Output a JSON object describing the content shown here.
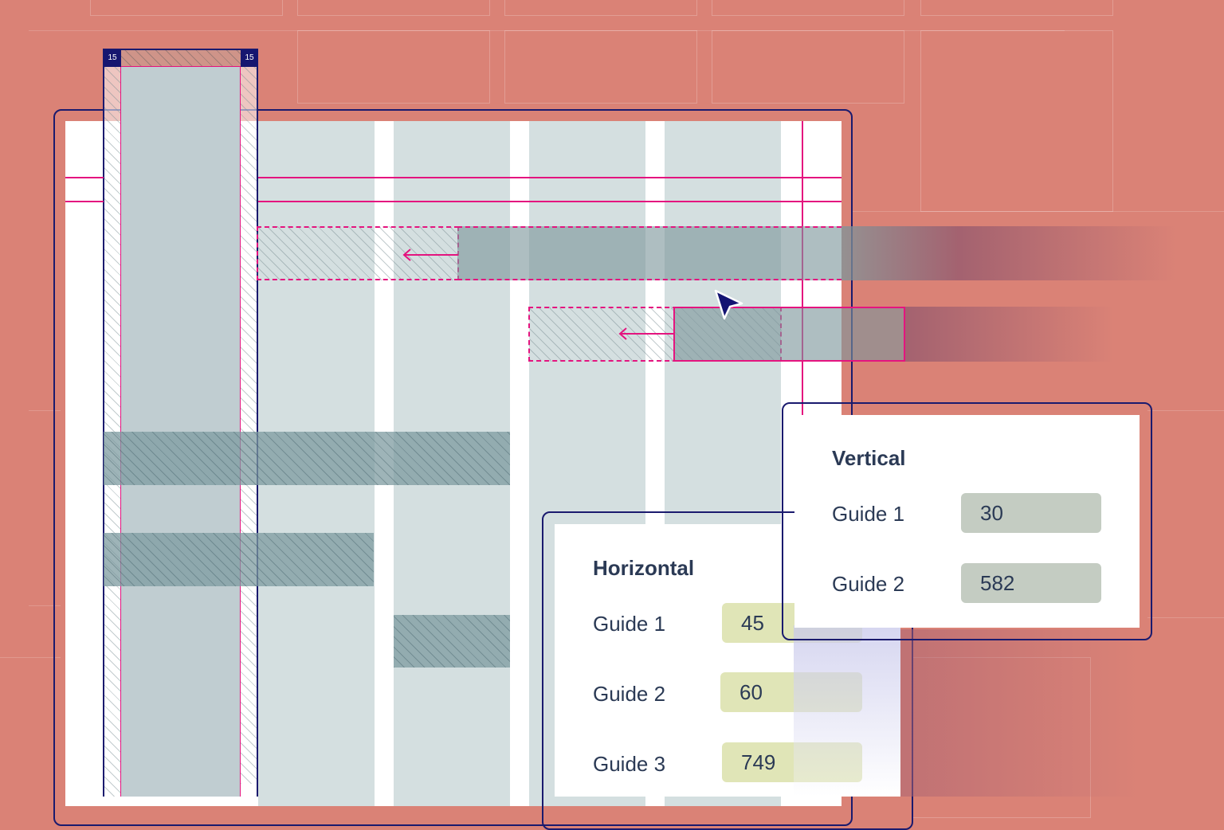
{
  "column_tags": {
    "left": "15",
    "right": "15"
  },
  "vertical_panel": {
    "title": "Vertical",
    "guides": [
      {
        "label": "Guide 1",
        "value": "30"
      },
      {
        "label": "Guide 2",
        "value": "582"
      }
    ]
  },
  "horizontal_panel": {
    "title": "Horizontal",
    "guides": [
      {
        "label": "Guide 1",
        "value": "45"
      },
      {
        "label": "Guide 2",
        "value": "60"
      },
      {
        "label": "Guide 3",
        "value": "749"
      }
    ]
  },
  "colors": {
    "background": "#da8276",
    "guide_line": "#e4147f",
    "frame": "#1a1a6e",
    "column_fill": "#d4dfe0",
    "horizontal_input": "#e0e5b7",
    "vertical_input": "#c4ccc2"
  }
}
